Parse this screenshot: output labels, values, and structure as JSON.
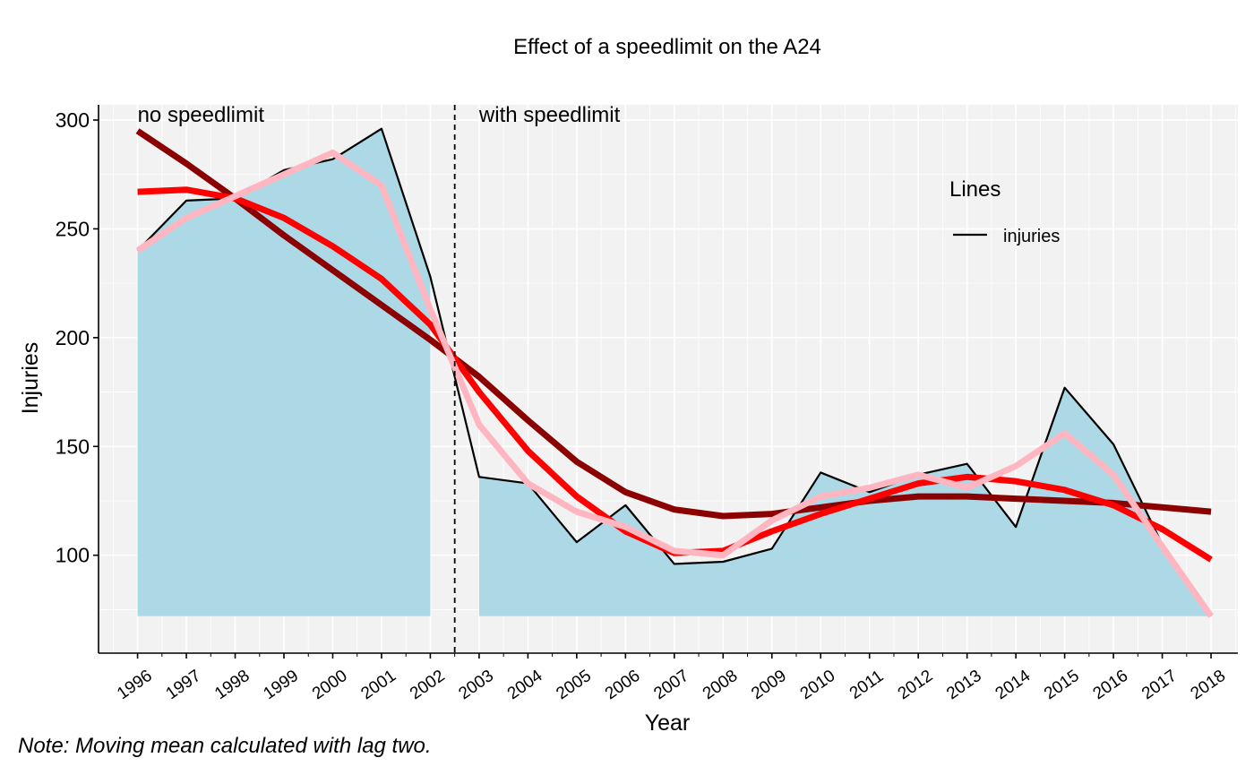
{
  "chart_data": {
    "type": "line",
    "title": "Effect of a speedlimit on the A24",
    "xlabel": "Year",
    "ylabel": "Injuries",
    "x": [
      1996,
      1997,
      1998,
      1999,
      2000,
      2001,
      2002,
      2003,
      2004,
      2005,
      2006,
      2007,
      2008,
      2009,
      2010,
      2011,
      2012,
      2013,
      2014,
      2015,
      2016,
      2017,
      2018
    ],
    "x_tick_labels": [
      "1996",
      "1997",
      "1998",
      "1999",
      "2000",
      "2001",
      "2002",
      "2003",
      "2004",
      "2005",
      "2006",
      "2007",
      "2008",
      "2009",
      "2010",
      "2011",
      "2012",
      "2013",
      "2014",
      "2015",
      "2016",
      "2017",
      "2018"
    ],
    "y_ticks": [
      100,
      150,
      200,
      250,
      300
    ],
    "y_tick_labels": [
      "100",
      "150",
      "200",
      "250",
      "300"
    ],
    "xlim": [
      1995.2,
      2018.55
    ],
    "ylim": [
      55,
      307
    ],
    "area_baseline": 72,
    "series": [
      {
        "name": "injuries",
        "values": [
          240,
          263,
          264,
          277,
          282,
          296,
          228,
          136,
          133,
          106,
          123,
          96,
          97,
          103,
          138,
          129,
          137,
          142,
          113,
          177,
          151,
          105,
          72
        ],
        "color": "#000000",
        "area_fill": "#add8e6"
      },
      {
        "values": [
          295,
          280,
          264,
          247,
          231,
          215,
          199,
          182,
          162,
          143,
          129,
          121,
          118,
          119,
          122,
          125,
          127,
          127,
          126,
          125,
          124,
          122,
          120
        ],
        "color": "#8b0000"
      },
      {
        "values": [
          267,
          268,
          264,
          255,
          242,
          227,
          206,
          175,
          148,
          127,
          111,
          101,
          102,
          111,
          119,
          126,
          133,
          136,
          134,
          130,
          123,
          112,
          98
        ],
        "color": "#ff0000"
      },
      {
        "values": [
          240,
          255,
          265,
          275,
          285,
          270,
          213,
          160,
          133,
          120,
          113,
          102,
          100,
          116,
          127,
          131,
          137,
          131,
          141,
          156,
          137,
          104,
          72
        ],
        "color": "#ffb6c1"
      }
    ],
    "breakpoint": 2002.5,
    "annotations": [
      "no speedlimit",
      "with speedlimit"
    ],
    "legend": {
      "title": "Lines",
      "items": [
        "injuries"
      ],
      "position": "top-right"
    },
    "grid": true,
    "panel_background": "#f2f2f2",
    "note": "Note: Moving mean calculated with lag two."
  }
}
